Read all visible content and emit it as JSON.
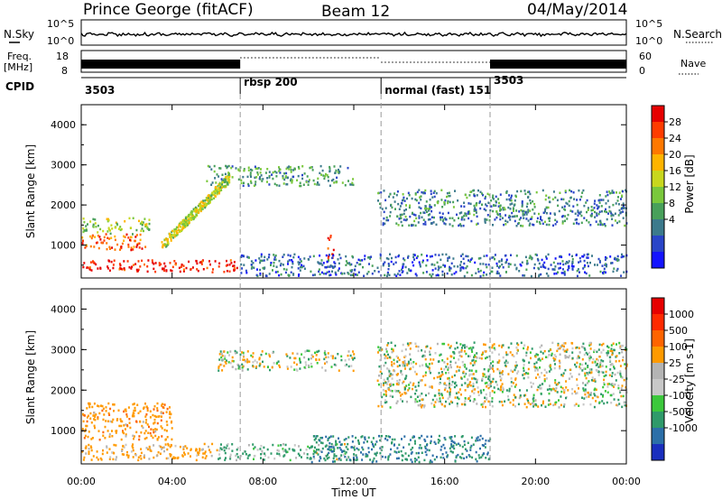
{
  "header": {
    "title": "Prince George (fitACF)",
    "beam": "Beam 12",
    "date": "04/May/2014"
  },
  "nsky_panel": {
    "left_label": "N.Sky",
    "right_label": "N.Search",
    "y_ticks": [
      "10^5",
      "10^0"
    ]
  },
  "freq_panel": {
    "label_line1": "Freq.",
    "label_line2": "[MHz]",
    "left_ticks": [
      "18",
      "8"
    ],
    "right_ticks": [
      "60",
      "0"
    ],
    "right_label": "Nave"
  },
  "cpid_panel": {
    "label": "CPID",
    "segments": [
      {
        "label": "3503",
        "start_hour": 0,
        "end_hour": 7
      },
      {
        "label": "rbsp 200",
        "start_hour": 7,
        "end_hour": 13.2
      },
      {
        "label": "normal (fast) 151",
        "start_hour": 13.2,
        "end_hour": 18
      },
      {
        "label": "3503",
        "start_hour": 18,
        "end_hour": 24
      }
    ]
  },
  "axes": {
    "xlabel": "Time UT",
    "x_ticks": [
      "00:00",
      "04:00",
      "08:00",
      "12:00",
      "16:00",
      "20:00",
      "00:00"
    ],
    "ylabel": "Slant Range [km]",
    "y_ticks": [
      "1000",
      "2000",
      "3000",
      "4000"
    ]
  },
  "power_scale": {
    "label": "Power [dB]",
    "ticks": [
      "4",
      "8",
      "12",
      "16",
      "20",
      "24",
      "28"
    ],
    "colors": [
      "#1414ff",
      "#2a45c8",
      "#3c7a8c",
      "#48a05a",
      "#7ac83c",
      "#c8d71e",
      "#ffb400",
      "#ff7800",
      "#ff3c00",
      "#e60000"
    ]
  },
  "velocity_scale": {
    "label": "Velocity [m s-1]",
    "ticks": [
      "1000",
      "500",
      "100",
      "25",
      "-25",
      "-100",
      "-500",
      "-1000"
    ],
    "colors": [
      "#1a2fbe",
      "#2c6fa8",
      "#2f9a6a",
      "#3cc83c",
      "#c8c8c8",
      "#b4b4b4",
      "#ff9a00",
      "#ff6400",
      "#ff2a00",
      "#e60000"
    ]
  },
  "colors": {
    "frame": "#000000",
    "dashed": "#9a9a9a",
    "gray_scatter": "#c4c4c4"
  },
  "chart_data": [
    {
      "type": "heatmap",
      "title": "Power [dB]",
      "xlabel": "Time UT",
      "ylabel": "Slant Range [km]",
      "x_range_hours": [
        0,
        24
      ],
      "y_range_km": [
        180,
        4500
      ],
      "color_range_db": [
        0,
        30
      ],
      "features": [
        {
          "name": "ground-scatter",
          "t_start": 0,
          "t_end": 7,
          "range_start": 350,
          "range_end": 650,
          "power": 28
        },
        {
          "name": "near-range",
          "t_start": 0,
          "t_end": 3,
          "range_start": 900,
          "range_end": 1300,
          "power": 24
        },
        {
          "name": "mid-band",
          "t_start": 0,
          "t_end": 3,
          "range_start": 1300,
          "range_end": 1700,
          "power": 14
        },
        {
          "name": "rising-arc",
          "t_start": 3.5,
          "t_end": 6.5,
          "range_start": 1000,
          "range_end": 2700,
          "power": 16
        },
        {
          "name": "upper-band",
          "t_start": 5.5,
          "t_end": 12,
          "range_start": 2500,
          "range_end": 3000,
          "power": 10
        },
        {
          "name": "spike",
          "t_start": 10.8,
          "t_end": 11.1,
          "range_start": 700,
          "range_end": 1300,
          "power": 28
        },
        {
          "name": "noise-floor",
          "t_start": 7,
          "t_end": 24,
          "range_start": 250,
          "range_end": 800,
          "power": 6
        },
        {
          "name": "evening-band",
          "t_start": 13,
          "t_end": 24,
          "range_start": 1500,
          "range_end": 2400,
          "power": 8
        }
      ]
    },
    {
      "type": "heatmap",
      "title": "Velocity [m s-1]",
      "xlabel": "Time UT",
      "ylabel": "Slant Range [km]",
      "x_range_hours": [
        0,
        24
      ],
      "y_range_km": [
        180,
        4500
      ],
      "color_range_ms": [
        -1000,
        1000
      ],
      "features": [
        {
          "name": "ground-scatter",
          "t_start": 0,
          "t_end": 6,
          "range_start": 300,
          "range_end": 700,
          "velocity": -150
        },
        {
          "name": "green-band",
          "t_start": 6,
          "t_end": 12,
          "range_start": 300,
          "range_end": 700,
          "velocity": 80
        },
        {
          "name": "orange-patch",
          "t_start": 0,
          "t_end": 4,
          "range_start": 800,
          "range_end": 1700,
          "velocity": -200
        },
        {
          "name": "upper-gray",
          "t_start": 6,
          "t_end": 12,
          "range_start": 2500,
          "range_end": 3000,
          "velocity": 0
        },
        {
          "name": "evening-gray",
          "t_start": 13,
          "t_end": 24,
          "range_start": 1600,
          "range_end": 3200,
          "velocity": 0
        },
        {
          "name": "colored-noise",
          "t_start": 10,
          "t_end": 18,
          "range_start": 250,
          "range_end": 900,
          "velocity": 300
        }
      ]
    }
  ]
}
